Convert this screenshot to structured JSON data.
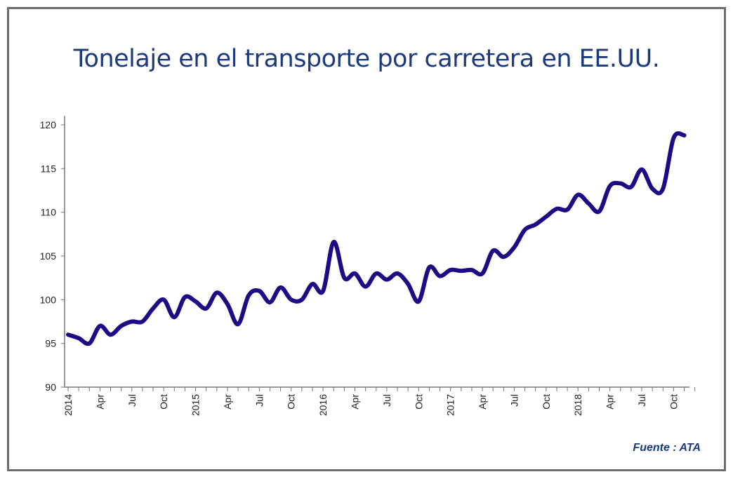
{
  "chart_data": {
    "type": "line",
    "title": "Tonelaje en el transporte por carretera en EE.UU.",
    "xlabel": "",
    "ylabel": "",
    "source": "Fuente : ATA",
    "ylim": [
      90,
      121
    ],
    "yticks": [
      90,
      95,
      100,
      105,
      110,
      115,
      120
    ],
    "x_start": "2014-01",
    "x_frequency": "monthly",
    "xtick_labels": [
      "2014",
      "Apr",
      "Jul",
      "Oct",
      "2015",
      "Apr",
      "Jul",
      "Oct",
      "2016",
      "Apr",
      "Jul",
      "Oct",
      "2017",
      "Apr",
      "Jul",
      "Oct",
      "2018",
      "Apr",
      "Jul",
      "Oct"
    ],
    "grid": false,
    "line_color": "#1e0a84",
    "series": [
      {
        "values": [
          96.0,
          95.6,
          95.0,
          97.0,
          96.0,
          97.0,
          97.5,
          97.5,
          99.0,
          100.0,
          98.0,
          100.3,
          99.8,
          99.0,
          100.8,
          99.5,
          97.2,
          100.5,
          101.0,
          99.7,
          101.4,
          100.0,
          100.0,
          101.8,
          101.0,
          106.6,
          102.5,
          103.0,
          101.5,
          103.0,
          102.3,
          103.0,
          101.8,
          99.8,
          103.7,
          102.7,
          103.4,
          103.3,
          103.4,
          103.0,
          105.6,
          104.9,
          106.0,
          108.0,
          108.6,
          109.5,
          110.4,
          110.3,
          112.0,
          111.0,
          110.1,
          113.0,
          113.3,
          112.9,
          114.9,
          112.7,
          112.7,
          118.5,
          118.8
        ]
      }
    ]
  }
}
